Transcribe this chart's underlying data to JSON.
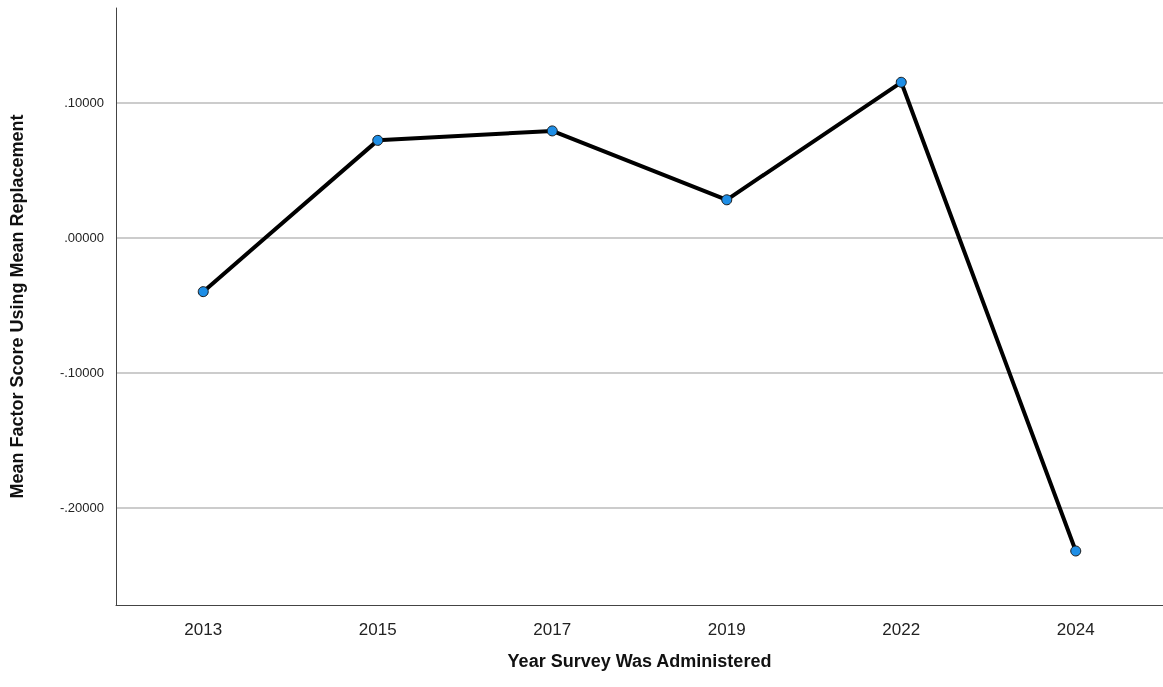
{
  "chart_data": {
    "type": "line",
    "xlabel": "Year Survey Was Administered",
    "ylabel": "Mean Factor Score Using Mean Replacement",
    "categories": [
      "2013",
      "2015",
      "2017",
      "2019",
      "2022",
      "2024"
    ],
    "series": [
      {
        "color": "#000000",
        "values": [
          -0.04,
          0.072,
          0.079,
          0.028,
          0.115,
          -0.232
        ]
      }
    ],
    "ylim": [
      -0.272,
      0.17
    ],
    "yticks": [
      {
        "value": -0.2,
        "label": "-.20000"
      },
      {
        "value": -0.1,
        "label": "-.10000"
      },
      {
        "value": 0,
        "label": ".00000"
      },
      {
        "value": 0.1,
        "label": ".10000"
      }
    ],
    "grid": "y",
    "marker": "circle",
    "line_style": "solid"
  }
}
